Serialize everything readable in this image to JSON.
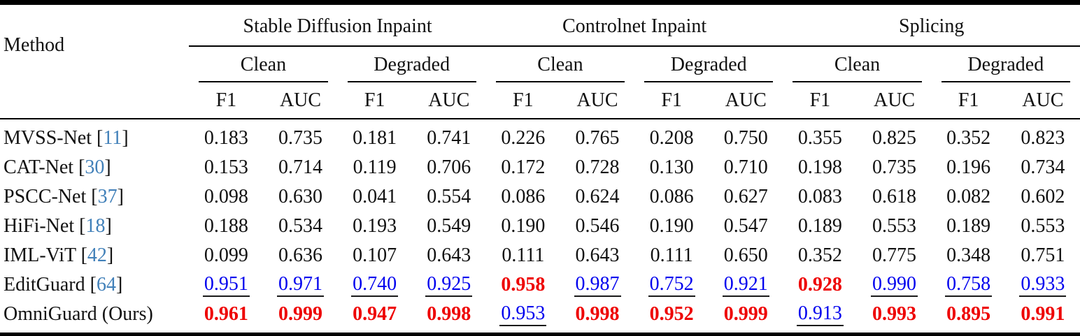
{
  "colors": {
    "best": "#ee0000",
    "second": "#0000ee",
    "citation": "#4180b9",
    "text": "#111111",
    "rule": "#000000",
    "underline": "#1a1a1a"
  },
  "table": {
    "method_header": "Method",
    "groups": [
      {
        "label": "Stable Diffusion Inpaint"
      },
      {
        "label": "Controlnet Inpaint"
      },
      {
        "label": "Splicing"
      }
    ],
    "condition_labels": [
      "Clean",
      "Degraded"
    ],
    "metric_labels": [
      "F1",
      "AUC"
    ],
    "style_legend": {
      "best": "red bold",
      "second": "blue underlined"
    },
    "rows": [
      {
        "method": "MVSS-Net",
        "citation": "11",
        "values": [
          "0.183",
          "0.735",
          "0.181",
          "0.741",
          "0.226",
          "0.765",
          "0.208",
          "0.750",
          "0.355",
          "0.825",
          "0.352",
          "0.823"
        ],
        "styles": [
          "plain",
          "plain",
          "plain",
          "plain",
          "plain",
          "plain",
          "plain",
          "plain",
          "plain",
          "plain",
          "plain",
          "plain"
        ]
      },
      {
        "method": "CAT-Net",
        "citation": "30",
        "values": [
          "0.153",
          "0.714",
          "0.119",
          "0.706",
          "0.172",
          "0.728",
          "0.130",
          "0.710",
          "0.198",
          "0.735",
          "0.196",
          "0.734"
        ],
        "styles": [
          "plain",
          "plain",
          "plain",
          "plain",
          "plain",
          "plain",
          "plain",
          "plain",
          "plain",
          "plain",
          "plain",
          "plain"
        ]
      },
      {
        "method": "PSCC-Net",
        "citation": "37",
        "values": [
          "0.098",
          "0.630",
          "0.041",
          "0.554",
          "0.086",
          "0.624",
          "0.086",
          "0.627",
          "0.083",
          "0.618",
          "0.082",
          "0.602"
        ],
        "styles": [
          "plain",
          "plain",
          "plain",
          "plain",
          "plain",
          "plain",
          "plain",
          "plain",
          "plain",
          "plain",
          "plain",
          "plain"
        ]
      },
      {
        "method": "HiFi-Net",
        "citation": "18",
        "values": [
          "0.188",
          "0.534",
          "0.193",
          "0.549",
          "0.190",
          "0.546",
          "0.190",
          "0.547",
          "0.189",
          "0.553",
          "0.189",
          "0.553"
        ],
        "styles": [
          "plain",
          "plain",
          "plain",
          "plain",
          "plain",
          "plain",
          "plain",
          "plain",
          "plain",
          "plain",
          "plain",
          "plain"
        ]
      },
      {
        "method": "IML-ViT",
        "citation": "42",
        "values": [
          "0.099",
          "0.636",
          "0.107",
          "0.643",
          "0.111",
          "0.643",
          "0.111",
          "0.650",
          "0.352",
          "0.775",
          "0.348",
          "0.751"
        ],
        "styles": [
          "plain",
          "plain",
          "plain",
          "plain",
          "plain",
          "plain",
          "plain",
          "plain",
          "plain",
          "plain",
          "plain",
          "plain"
        ]
      },
      {
        "method": "EditGuard",
        "citation": "64",
        "values": [
          "0.951",
          "0.971",
          "0.740",
          "0.925",
          "0.958",
          "0.987",
          "0.752",
          "0.921",
          "0.928",
          "0.990",
          "0.758",
          "0.933"
        ],
        "styles": [
          "second",
          "second",
          "second",
          "second",
          "best",
          "second",
          "second",
          "second",
          "best",
          "second",
          "second",
          "second"
        ]
      },
      {
        "method": "OmniGuard (Ours)",
        "citation": null,
        "values": [
          "0.961",
          "0.999",
          "0.947",
          "0.998",
          "0.953",
          "0.998",
          "0.952",
          "0.999",
          "0.913",
          "0.993",
          "0.895",
          "0.991"
        ],
        "styles": [
          "best",
          "best",
          "best",
          "best",
          "second",
          "best",
          "best",
          "best",
          "second",
          "best",
          "best",
          "best"
        ]
      }
    ]
  }
}
